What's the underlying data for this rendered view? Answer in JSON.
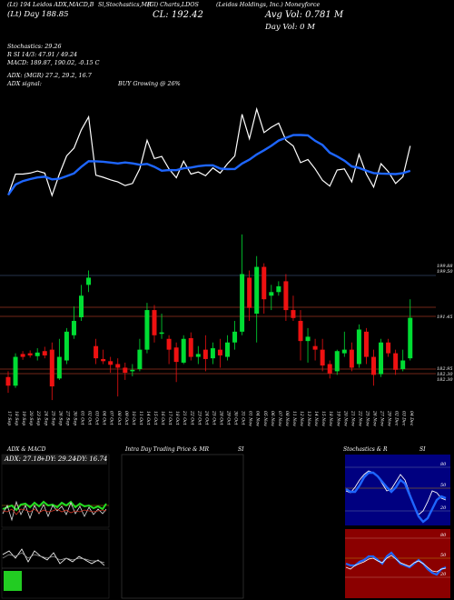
{
  "header": {
    "topline": "(Lt) 194 Leidos ADX,MACD,B",
    "stoch_label": "Sl,Stochastics,MR",
    "green_label": "(Gl) Charts,LDOS",
    "company": "(Leidos Holdings, Inc.) Moneyforce",
    "day_line": "(Lt) Day ",
    "day_value": "188.85",
    "cl_label": "CL: 192.42",
    "avg_vol": "Avg Vol: 0.781 M",
    "day_vol": "Day Vol: 0   M"
  },
  "indicators": {
    "stochastics": "Stochastics: 29.26",
    "si": "R                    SI 14/3: 47.91 / 49.24",
    "macd": "MACD: 189.87,  190.02,  -0.15 C",
    "adx": "ADX:                             (MGR) 27.2,  29.2,  16.7",
    "adx_signal_label": "ADX  signal:",
    "adx_signal_value": "BUY Growing @ 26%"
  },
  "price_axis": {
    "labels": [
      "199.88",
      "199.50",
      "191.45",
      "182.95",
      "182.30",
      "182.30"
    ]
  },
  "dates": [
    "17 Sep",
    "18 Sep",
    "19 Sep",
    "20 Sep",
    "23 Sep",
    "24 Sep",
    "25 Sep",
    "26 Sep",
    "27 Sep",
    "30 Sep",
    "01 Oct",
    "02 Oct",
    "03 Oct",
    "04 Oct",
    "07 Oct",
    "08 Oct",
    "09 Oct",
    "10 Oct",
    "11 Oct",
    "14 Oct",
    "15 Oct",
    "16 Oct",
    "17 Oct",
    "18 Oct",
    "21 Oct",
    "22 Oct",
    "23 Oct",
    "24 Oct",
    "25 Oct",
    "28 Oct",
    "29 Oct",
    "30 Oct",
    "31 Oct",
    "01 Nov",
    "04 Nov",
    "05 Nov",
    "06 Nov",
    "07 Nov",
    "08 Nov",
    "11 Nov",
    "12 Nov",
    "13 Nov",
    "14 Nov",
    "15 Nov",
    "18 Nov",
    "19 Nov",
    "20 Nov",
    "21 Nov",
    "22 Nov",
    "25 Nov",
    "26 Nov",
    "27 Nov",
    "29 Nov",
    "02 Dec",
    "03 Dec",
    "04 Dec"
  ],
  "panels": {
    "adx_title": "ADX  & MACD",
    "adx_value": "ADX: 27.18",
    "pdi_value": "+DY: 29.24",
    "mdi_value": "-DY: 16.74",
    "intra_title": "Intra  Day Trading Price  & MR",
    "intra_si": "SI",
    "stoch_title": "Stochastics & R",
    "stoch_si": "SI",
    "stoch_axis": [
      "80",
      "50",
      "20"
    ],
    "si_axis": [
      "80",
      "50",
      "20"
    ]
  },
  "colors": {
    "up": "#00dd33",
    "down": "#ee1111",
    "ma": "#1e66ff",
    "price_line": "#ffffff",
    "hline": "#993322"
  },
  "chart_data": {
    "type": "candlestick",
    "title": "",
    "ylim": [
      180,
      205
    ],
    "candles": [
      {
        "o": 184.2,
        "h": 185.0,
        "l": 182.0,
        "c": 183.0
      },
      {
        "o": 183.0,
        "h": 187.5,
        "l": 182.7,
        "c": 187.0
      },
      {
        "o": 187.4,
        "h": 187.8,
        "l": 186.6,
        "c": 187.0
      },
      {
        "o": 187.5,
        "h": 187.9,
        "l": 186.9,
        "c": 187.2
      },
      {
        "o": 187.1,
        "h": 188.2,
        "l": 186.5,
        "c": 187.6
      },
      {
        "o": 187.8,
        "h": 188.4,
        "l": 186.8,
        "c": 187.2
      },
      {
        "o": 188.0,
        "h": 189.0,
        "l": 181.0,
        "c": 182.9
      },
      {
        "o": 184.0,
        "h": 189.5,
        "l": 183.8,
        "c": 187.0
      },
      {
        "o": 186.5,
        "h": 191.0,
        "l": 186.0,
        "c": 190.5
      },
      {
        "o": 190.0,
        "h": 194.0,
        "l": 189.5,
        "c": 192.0
      },
      {
        "o": 192.5,
        "h": 197.0,
        "l": 192.0,
        "c": 195.5
      },
      {
        "o": 197.0,
        "h": 199.0,
        "l": 196.0,
        "c": 198.0
      },
      {
        "o": 188.5,
        "h": 189.5,
        "l": 186.0,
        "c": 186.8
      },
      {
        "o": 186.7,
        "h": 188.0,
        "l": 186.0,
        "c": 186.4
      },
      {
        "o": 186.4,
        "h": 187.0,
        "l": 184.8,
        "c": 185.9
      },
      {
        "o": 186.0,
        "h": 186.8,
        "l": 181.5,
        "c": 185.5
      },
      {
        "o": 185.5,
        "h": 186.2,
        "l": 183.8,
        "c": 184.8
      },
      {
        "o": 185.0,
        "h": 186.0,
        "l": 184.3,
        "c": 185.2
      },
      {
        "o": 185.3,
        "h": 189.5,
        "l": 185.0,
        "c": 188.0
      },
      {
        "o": 188.0,
        "h": 194.5,
        "l": 187.5,
        "c": 193.5
      },
      {
        "o": 193.5,
        "h": 194.2,
        "l": 189.0,
        "c": 190.0
      },
      {
        "o": 190.2,
        "h": 193.0,
        "l": 189.5,
        "c": 190.4
      },
      {
        "o": 189.5,
        "h": 190.0,
        "l": 186.0,
        "c": 188.0
      },
      {
        "o": 188.3,
        "h": 189.0,
        "l": 183.5,
        "c": 186.3
      },
      {
        "o": 186.2,
        "h": 190.0,
        "l": 186.0,
        "c": 189.5
      },
      {
        "o": 189.6,
        "h": 190.4,
        "l": 186.5,
        "c": 187.0
      },
      {
        "o": 187.0,
        "h": 188.5,
        "l": 186.0,
        "c": 187.4
      },
      {
        "o": 188.0,
        "h": 190.0,
        "l": 185.0,
        "c": 186.7
      },
      {
        "o": 186.8,
        "h": 189.0,
        "l": 186.0,
        "c": 188.2
      },
      {
        "o": 188.0,
        "h": 189.5,
        "l": 185.5,
        "c": 187.2
      },
      {
        "o": 187.0,
        "h": 190.0,
        "l": 186.5,
        "c": 189.0
      },
      {
        "o": 189.0,
        "h": 192.0,
        "l": 188.0,
        "c": 190.5
      },
      {
        "o": 190.5,
        "h": 204.0,
        "l": 190.0,
        "c": 198.5
      },
      {
        "o": 198.0,
        "h": 199.0,
        "l": 192.0,
        "c": 193.8
      },
      {
        "o": 193.0,
        "h": 201.0,
        "l": 189.0,
        "c": 199.5
      },
      {
        "o": 199.5,
        "h": 200.0,
        "l": 193.0,
        "c": 195.0
      },
      {
        "o": 195.5,
        "h": 197.0,
        "l": 193.5,
        "c": 196.0
      },
      {
        "o": 196.0,
        "h": 197.5,
        "l": 195.5,
        "c": 196.8
      },
      {
        "o": 197.5,
        "h": 198.5,
        "l": 192.0,
        "c": 193.5
      },
      {
        "o": 193.5,
        "h": 195.5,
        "l": 192.0,
        "c": 192.4
      },
      {
        "o": 192.0,
        "h": 193.5,
        "l": 186.5,
        "c": 189.2
      },
      {
        "o": 189.2,
        "h": 191.0,
        "l": 186.2,
        "c": 189.8
      },
      {
        "o": 188.5,
        "h": 189.5,
        "l": 186.5,
        "c": 188.0
      },
      {
        "o": 188.0,
        "h": 189.5,
        "l": 185.0,
        "c": 185.8
      },
      {
        "o": 186.0,
        "h": 186.5,
        "l": 184.0,
        "c": 184.7
      },
      {
        "o": 185.0,
        "h": 188.0,
        "l": 184.5,
        "c": 187.8
      },
      {
        "o": 187.5,
        "h": 190.5,
        "l": 187.0,
        "c": 188.0
      },
      {
        "o": 188.0,
        "h": 189.0,
        "l": 185.0,
        "c": 185.5
      },
      {
        "o": 186.0,
        "h": 191.5,
        "l": 185.5,
        "c": 190.8
      },
      {
        "o": 190.5,
        "h": 191.0,
        "l": 186.0,
        "c": 187.0
      },
      {
        "o": 187.0,
        "h": 188.0,
        "l": 183.0,
        "c": 184.5
      },
      {
        "o": 184.6,
        "h": 189.5,
        "l": 184.2,
        "c": 189.0
      },
      {
        "o": 189.0,
        "h": 189.5,
        "l": 187.0,
        "c": 187.5
      },
      {
        "o": 187.5,
        "h": 188.0,
        "l": 184.5,
        "c": 185.2
      },
      {
        "o": 185.3,
        "h": 188.0,
        "l": 185.0,
        "c": 186.5
      },
      {
        "o": 186.8,
        "h": 195.0,
        "l": 186.5,
        "c": 192.42
      }
    ]
  }
}
